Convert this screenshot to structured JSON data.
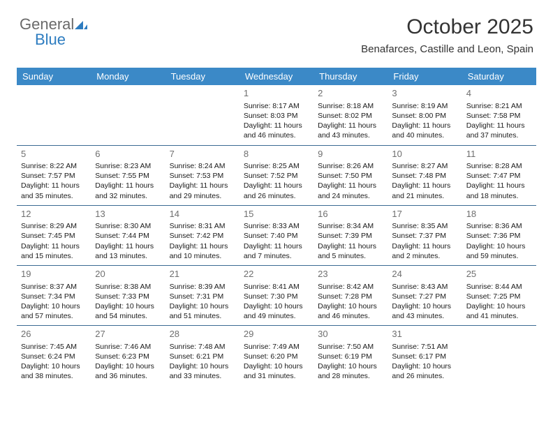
{
  "logo": {
    "part1": "General",
    "part2": "Blue"
  },
  "title": "October 2025",
  "subtitle": "Benafarces, Castille and Leon, Spain",
  "colors": {
    "header_bg": "#3b89c7",
    "header_fg": "#ffffff",
    "border": "#3b6a93",
    "daynum": "#6f6f6f",
    "logo_gray": "#6a6a6a",
    "logo_blue": "#2d7cc0"
  },
  "day_headers": [
    "Sunday",
    "Monday",
    "Tuesday",
    "Wednesday",
    "Thursday",
    "Friday",
    "Saturday"
  ],
  "weeks": [
    [
      {
        "day": "",
        "sunrise": "",
        "sunset": "",
        "daylight": ""
      },
      {
        "day": "",
        "sunrise": "",
        "sunset": "",
        "daylight": ""
      },
      {
        "day": "",
        "sunrise": "",
        "sunset": "",
        "daylight": ""
      },
      {
        "day": "1",
        "sunrise": "Sunrise: 8:17 AM",
        "sunset": "Sunset: 8:03 PM",
        "daylight": "Daylight: 11 hours and 46 minutes."
      },
      {
        "day": "2",
        "sunrise": "Sunrise: 8:18 AM",
        "sunset": "Sunset: 8:02 PM",
        "daylight": "Daylight: 11 hours and 43 minutes."
      },
      {
        "day": "3",
        "sunrise": "Sunrise: 8:19 AM",
        "sunset": "Sunset: 8:00 PM",
        "daylight": "Daylight: 11 hours and 40 minutes."
      },
      {
        "day": "4",
        "sunrise": "Sunrise: 8:21 AM",
        "sunset": "Sunset: 7:58 PM",
        "daylight": "Daylight: 11 hours and 37 minutes."
      }
    ],
    [
      {
        "day": "5",
        "sunrise": "Sunrise: 8:22 AM",
        "sunset": "Sunset: 7:57 PM",
        "daylight": "Daylight: 11 hours and 35 minutes."
      },
      {
        "day": "6",
        "sunrise": "Sunrise: 8:23 AM",
        "sunset": "Sunset: 7:55 PM",
        "daylight": "Daylight: 11 hours and 32 minutes."
      },
      {
        "day": "7",
        "sunrise": "Sunrise: 8:24 AM",
        "sunset": "Sunset: 7:53 PM",
        "daylight": "Daylight: 11 hours and 29 minutes."
      },
      {
        "day": "8",
        "sunrise": "Sunrise: 8:25 AM",
        "sunset": "Sunset: 7:52 PM",
        "daylight": "Daylight: 11 hours and 26 minutes."
      },
      {
        "day": "9",
        "sunrise": "Sunrise: 8:26 AM",
        "sunset": "Sunset: 7:50 PM",
        "daylight": "Daylight: 11 hours and 24 minutes."
      },
      {
        "day": "10",
        "sunrise": "Sunrise: 8:27 AM",
        "sunset": "Sunset: 7:48 PM",
        "daylight": "Daylight: 11 hours and 21 minutes."
      },
      {
        "day": "11",
        "sunrise": "Sunrise: 8:28 AM",
        "sunset": "Sunset: 7:47 PM",
        "daylight": "Daylight: 11 hours and 18 minutes."
      }
    ],
    [
      {
        "day": "12",
        "sunrise": "Sunrise: 8:29 AM",
        "sunset": "Sunset: 7:45 PM",
        "daylight": "Daylight: 11 hours and 15 minutes."
      },
      {
        "day": "13",
        "sunrise": "Sunrise: 8:30 AM",
        "sunset": "Sunset: 7:44 PM",
        "daylight": "Daylight: 11 hours and 13 minutes."
      },
      {
        "day": "14",
        "sunrise": "Sunrise: 8:31 AM",
        "sunset": "Sunset: 7:42 PM",
        "daylight": "Daylight: 11 hours and 10 minutes."
      },
      {
        "day": "15",
        "sunrise": "Sunrise: 8:33 AM",
        "sunset": "Sunset: 7:40 PM",
        "daylight": "Daylight: 11 hours and 7 minutes."
      },
      {
        "day": "16",
        "sunrise": "Sunrise: 8:34 AM",
        "sunset": "Sunset: 7:39 PM",
        "daylight": "Daylight: 11 hours and 5 minutes."
      },
      {
        "day": "17",
        "sunrise": "Sunrise: 8:35 AM",
        "sunset": "Sunset: 7:37 PM",
        "daylight": "Daylight: 11 hours and 2 minutes."
      },
      {
        "day": "18",
        "sunrise": "Sunrise: 8:36 AM",
        "sunset": "Sunset: 7:36 PM",
        "daylight": "Daylight: 10 hours and 59 minutes."
      }
    ],
    [
      {
        "day": "19",
        "sunrise": "Sunrise: 8:37 AM",
        "sunset": "Sunset: 7:34 PM",
        "daylight": "Daylight: 10 hours and 57 minutes."
      },
      {
        "day": "20",
        "sunrise": "Sunrise: 8:38 AM",
        "sunset": "Sunset: 7:33 PM",
        "daylight": "Daylight: 10 hours and 54 minutes."
      },
      {
        "day": "21",
        "sunrise": "Sunrise: 8:39 AM",
        "sunset": "Sunset: 7:31 PM",
        "daylight": "Daylight: 10 hours and 51 minutes."
      },
      {
        "day": "22",
        "sunrise": "Sunrise: 8:41 AM",
        "sunset": "Sunset: 7:30 PM",
        "daylight": "Daylight: 10 hours and 49 minutes."
      },
      {
        "day": "23",
        "sunrise": "Sunrise: 8:42 AM",
        "sunset": "Sunset: 7:28 PM",
        "daylight": "Daylight: 10 hours and 46 minutes."
      },
      {
        "day": "24",
        "sunrise": "Sunrise: 8:43 AM",
        "sunset": "Sunset: 7:27 PM",
        "daylight": "Daylight: 10 hours and 43 minutes."
      },
      {
        "day": "25",
        "sunrise": "Sunrise: 8:44 AM",
        "sunset": "Sunset: 7:25 PM",
        "daylight": "Daylight: 10 hours and 41 minutes."
      }
    ],
    [
      {
        "day": "26",
        "sunrise": "Sunrise: 7:45 AM",
        "sunset": "Sunset: 6:24 PM",
        "daylight": "Daylight: 10 hours and 38 minutes."
      },
      {
        "day": "27",
        "sunrise": "Sunrise: 7:46 AM",
        "sunset": "Sunset: 6:23 PM",
        "daylight": "Daylight: 10 hours and 36 minutes."
      },
      {
        "day": "28",
        "sunrise": "Sunrise: 7:48 AM",
        "sunset": "Sunset: 6:21 PM",
        "daylight": "Daylight: 10 hours and 33 minutes."
      },
      {
        "day": "29",
        "sunrise": "Sunrise: 7:49 AM",
        "sunset": "Sunset: 6:20 PM",
        "daylight": "Daylight: 10 hours and 31 minutes."
      },
      {
        "day": "30",
        "sunrise": "Sunrise: 7:50 AM",
        "sunset": "Sunset: 6:19 PM",
        "daylight": "Daylight: 10 hours and 28 minutes."
      },
      {
        "day": "31",
        "sunrise": "Sunrise: 7:51 AM",
        "sunset": "Sunset: 6:17 PM",
        "daylight": "Daylight: 10 hours and 26 minutes."
      },
      {
        "day": "",
        "sunrise": "",
        "sunset": "",
        "daylight": ""
      }
    ]
  ]
}
